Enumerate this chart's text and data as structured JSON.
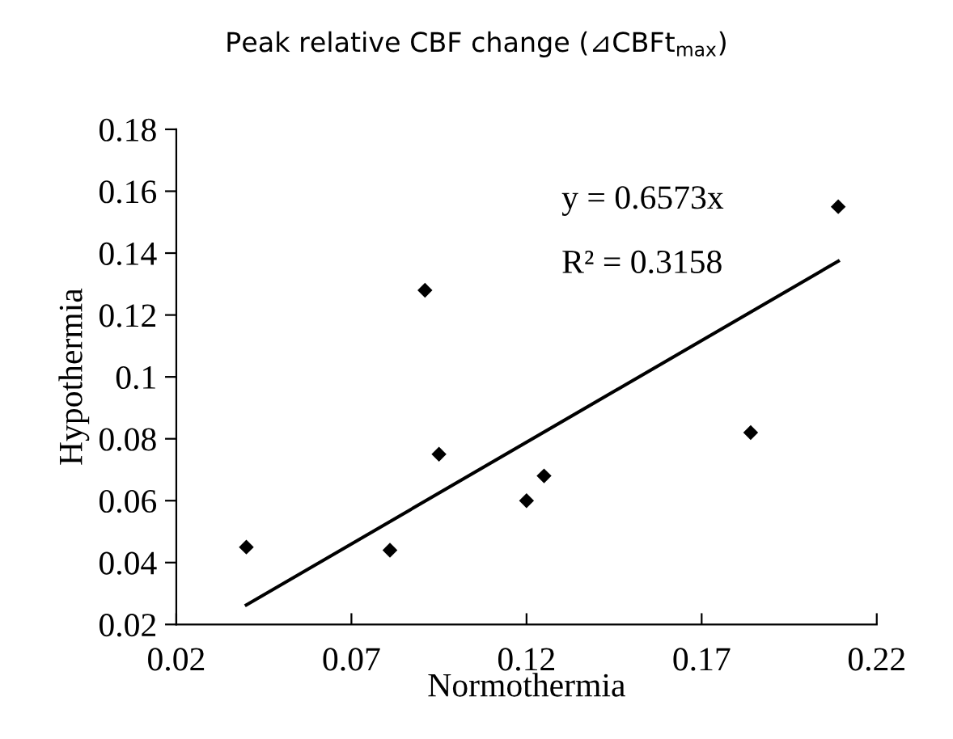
{
  "chart_data": {
    "type": "scatter",
    "title": "Peak relative CBF change (⊿CBFt$_{max}$)",
    "xlabel": "Normothermia",
    "ylabel": "Hypothermia",
    "annotations": [
      "y = 0.6573x",
      "R² = 0.3158"
    ],
    "x": [
      0.04,
      0.081,
      0.091,
      0.095,
      0.12,
      0.125,
      0.184,
      0.209
    ],
    "series": [
      {
        "color": "#000000",
        "values": [
          0.045,
          0.044,
          0.128,
          0.075,
          0.06,
          0.068,
          0.082,
          0.155
        ]
      },
      {
        "type": "line",
        "color": "#000000",
        "x": [
          0.04,
          0.209
        ],
        "values": [
          0.0263,
          0.1374
        ],
        "marker": "none"
      }
    ],
    "marker": "diamond",
    "line_style": "solid",
    "xlim": [
      0.02,
      0.22
    ],
    "xticks": [
      0.02,
      0.07,
      0.12,
      0.17,
      0.22
    ],
    "ylim": [
      0.02,
      0.18
    ],
    "yticks": [
      0.02,
      0.04,
      0.06,
      0.08,
      {
        "value": 0.1,
        "label": "0.1"
      },
      0.12,
      0.14,
      0.16,
      0.18
    ],
    "grid": false,
    "legend": false
  }
}
